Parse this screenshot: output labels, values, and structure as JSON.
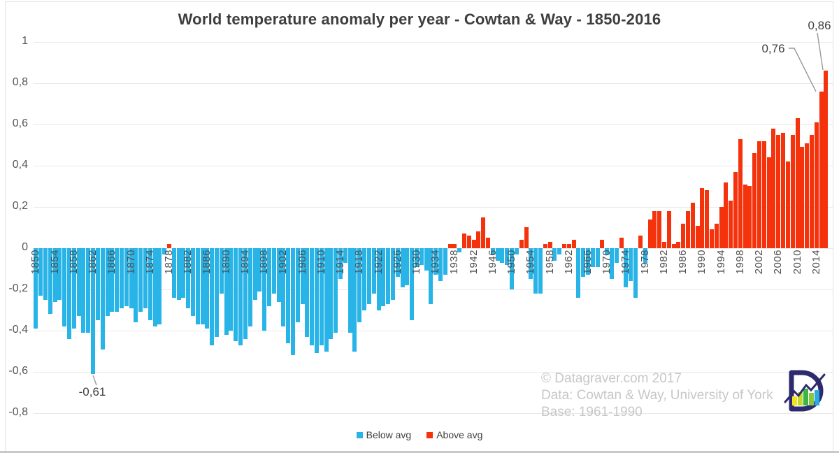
{
  "title": "World temperature anomaly per year - Cowtan & Way - 1850-2016",
  "legend": [
    {
      "label": "Below avg",
      "color": "#29b4e8"
    },
    {
      "label": "Above avg",
      "color": "#f4320c"
    }
  ],
  "annotations": {
    "min_1862": "-0,61",
    "peak_2015": "0,76",
    "peak_2016": "0,86"
  },
  "watermark": {
    "line1": "© Datagraver.com 2017",
    "line2": "Data: Cowtan & Way, University of York",
    "line3": "Base: 1961-1990"
  },
  "logo_name": "datagraver-logo",
  "chart_data": {
    "type": "bar",
    "title": "World temperature anomaly per year - Cowtan & Way - 1850-2016",
    "xlabel": "",
    "ylabel": "",
    "x_start_year": 1850,
    "x_end_year": 2016,
    "x_tick_interval": 4,
    "x_tick_labels": [
      "1850",
      "1854",
      "1858",
      "1862",
      "1866",
      "1870",
      "1874",
      "1878",
      "1882",
      "1886",
      "1890",
      "1894",
      "1898",
      "1902",
      "1906",
      "1910",
      "1914",
      "1918",
      "1922",
      "1926",
      "1930",
      "1934",
      "1938",
      "1942",
      "1946",
      "1950",
      "1954",
      "1958",
      "1962",
      "1966",
      "1970",
      "1974",
      "1978",
      "1982",
      "1986",
      "1990",
      "1994",
      "1998",
      "2002",
      "2006",
      "2010",
      "2014"
    ],
    "ylim": [
      -0.8,
      1.0
    ],
    "y_ticks": [
      {
        "label": "1",
        "value": 1.0
      },
      {
        "label": "0,8",
        "value": 0.8
      },
      {
        "label": "0,6",
        "value": 0.6
      },
      {
        "label": "0,4",
        "value": 0.4
      },
      {
        "label": "0,2",
        "value": 0.2
      },
      {
        "label": "0",
        "value": 0.0
      },
      {
        "label": "-0,2",
        "value": -0.2
      },
      {
        "label": "-0,4",
        "value": -0.4
      },
      {
        "label": "-0,6",
        "value": -0.6
      },
      {
        "label": "-0,8",
        "value": -0.8
      }
    ],
    "grid": true,
    "legend_position": "bottom",
    "colors": {
      "below": "#29b4e8",
      "above": "#f4320c",
      "grid": "#e9e9e9"
    },
    "values": [
      -0.39,
      -0.23,
      -0.25,
      -0.32,
      -0.26,
      -0.25,
      -0.38,
      -0.44,
      -0.39,
      -0.33,
      -0.41,
      -0.41,
      -0.61,
      -0.35,
      -0.49,
      -0.33,
      -0.31,
      -0.31,
      -0.29,
      -0.28,
      -0.29,
      -0.36,
      -0.31,
      -0.29,
      -0.35,
      -0.38,
      -0.37,
      -0.03,
      0.02,
      -0.24,
      -0.25,
      -0.24,
      -0.29,
      -0.33,
      -0.37,
      -0.37,
      -0.39,
      -0.47,
      -0.43,
      -0.22,
      -0.42,
      -0.4,
      -0.45,
      -0.47,
      -0.44,
      -0.38,
      -0.25,
      -0.21,
      -0.4,
      -0.28,
      -0.22,
      -0.26,
      -0.38,
      -0.46,
      -0.52,
      -0.36,
      -0.27,
      -0.43,
      -0.47,
      -0.51,
      -0.47,
      -0.5,
      -0.44,
      -0.41,
      -0.15,
      -0.07,
      -0.41,
      -0.5,
      -0.36,
      -0.3,
      -0.27,
      -0.22,
      -0.3,
      -0.28,
      -0.27,
      -0.25,
      -0.14,
      -0.19,
      -0.18,
      -0.35,
      -0.09,
      -0.08,
      -0.11,
      -0.27,
      -0.13,
      -0.16,
      -0.13,
      0.02,
      0.02,
      -0.02,
      0.07,
      0.06,
      0.04,
      0.08,
      0.15,
      0.05,
      -0.03,
      -0.06,
      -0.07,
      -0.08,
      -0.2,
      -0.03,
      0.04,
      0.1,
      -0.15,
      -0.22,
      -0.22,
      0.02,
      0.03,
      -0.06,
      -0.03,
      0.02,
      0.02,
      0.04,
      -0.24,
      -0.14,
      -0.13,
      -0.09,
      -0.09,
      0.04,
      -0.03,
      -0.15,
      -0.07,
      0.05,
      -0.19,
      -0.16,
      -0.24,
      0.06,
      -0.07,
      0.14,
      0.18,
      0.18,
      0.03,
      0.18,
      0.02,
      0.03,
      0.12,
      0.18,
      0.22,
      0.11,
      0.29,
      0.28,
      0.09,
      0.12,
      0.2,
      0.32,
      0.23,
      0.37,
      0.53,
      0.31,
      0.3,
      0.46,
      0.52,
      0.52,
      0.44,
      0.58,
      0.55,
      0.56,
      0.42,
      0.55,
      0.63,
      0.49,
      0.51,
      0.55,
      0.61,
      0.76,
      0.86
    ],
    "annotated_points": [
      {
        "year": 1862,
        "label": "-0,61"
      },
      {
        "year": 2015,
        "label": "0,76"
      },
      {
        "year": 2016,
        "label": "0,86"
      }
    ]
  }
}
